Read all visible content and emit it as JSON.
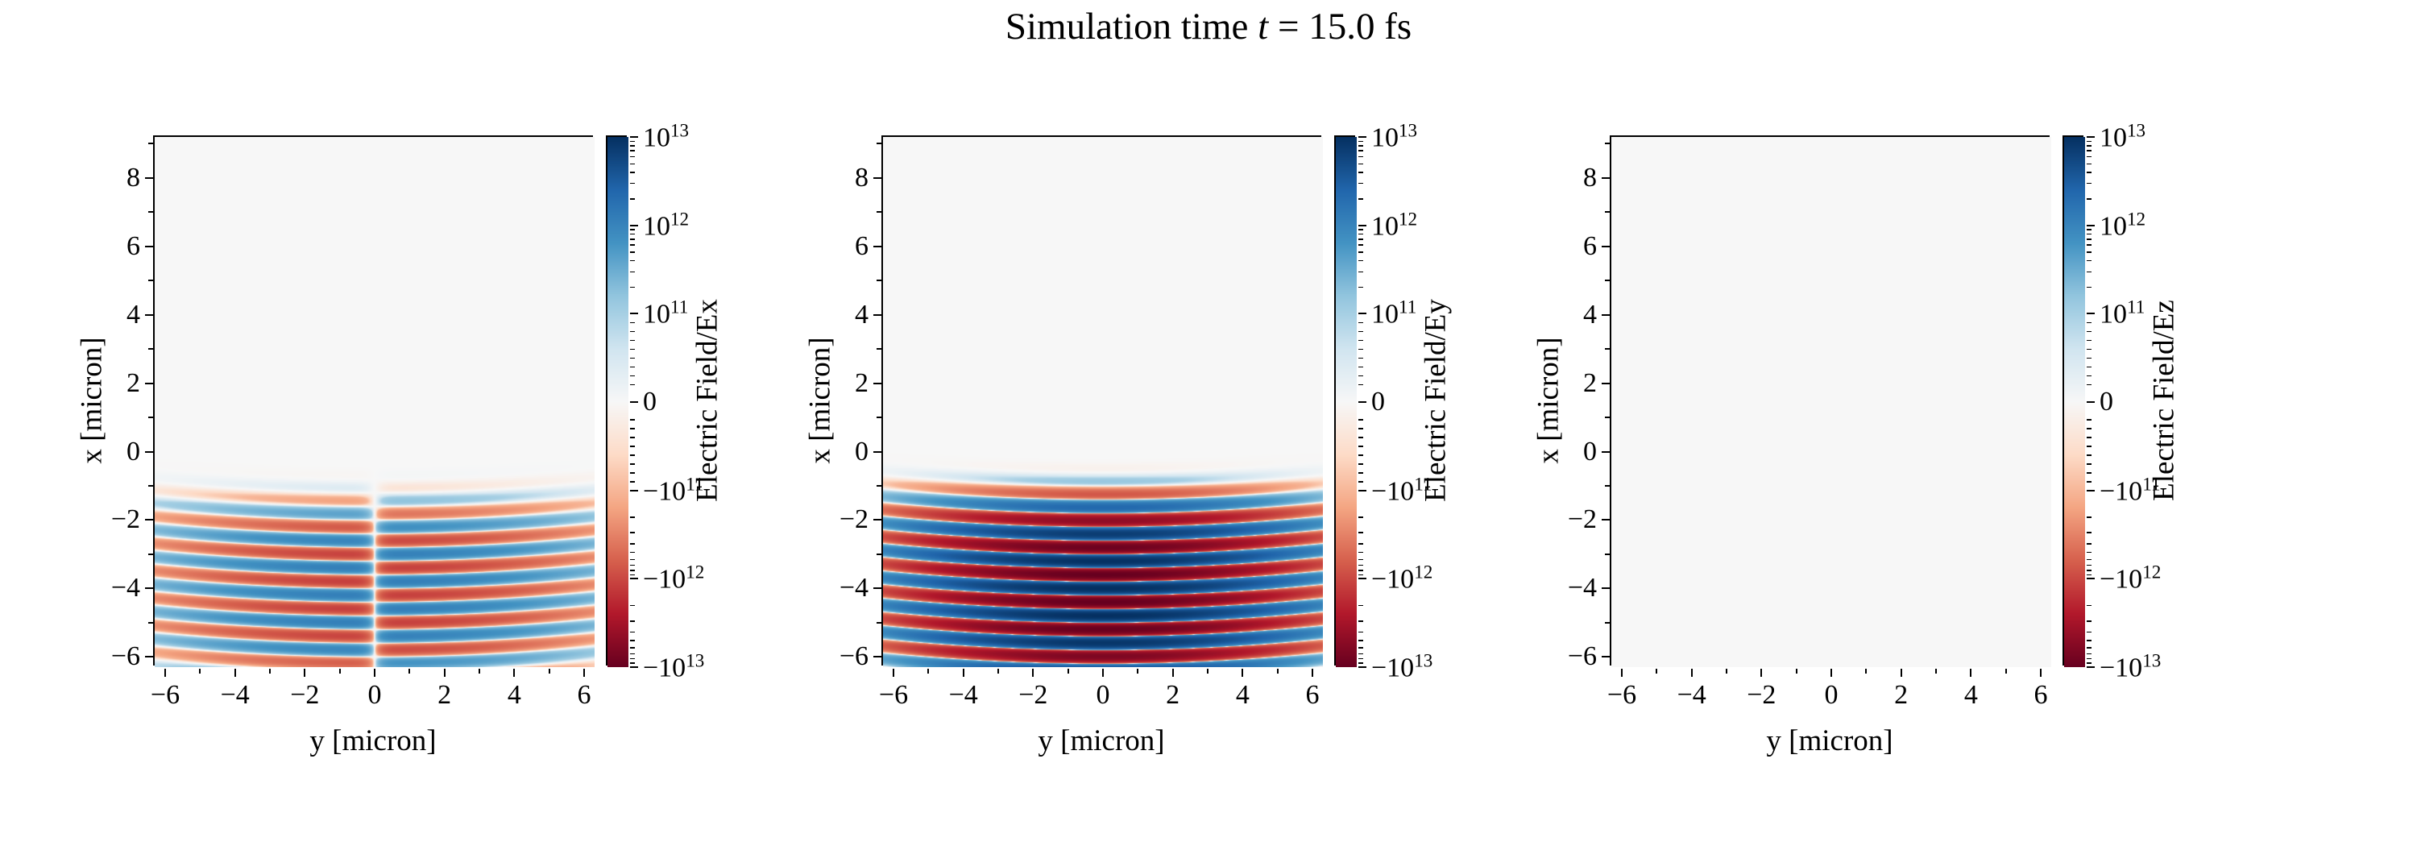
{
  "figure": {
    "title_prefix": "Simulation time ",
    "title_math_symbol": "t",
    "title_suffix": " = 15.0 fs",
    "background_color": "#ffffff"
  },
  "style": {
    "colormap": "RdBu",
    "colormap_stops": [
      "#67001f",
      "#b2182b",
      "#d6604d",
      "#f4a582",
      "#fddbc7",
      "#f7f7f7",
      "#d1e5f0",
      "#92c5de",
      "#4393c3",
      "#2166ac",
      "#053061"
    ],
    "spine_color": "#000000",
    "zero_field_color": "#f7f7f7"
  },
  "chart_data": [
    {
      "type": "heatmap",
      "component": "Ex",
      "xlabel": "y [micron]",
      "ylabel": "x [micron]",
      "xlim": [
        -6.3,
        6.3
      ],
      "ylim": [
        -6.3,
        9.2
      ],
      "x_ticks": [
        -6,
        -4,
        -2,
        0,
        2,
        4,
        6
      ],
      "y_ticks": [
        -6,
        -4,
        -2,
        0,
        2,
        4,
        6,
        8
      ],
      "colorbar_label": "Electric Field/Ex",
      "scale": "symlog",
      "linthresh": 100000000000.0,
      "decades_each_side": 2,
      "clim": [
        -10000000000000.0,
        10000000000000.0
      ],
      "colorbar_ticks": [
        {
          "label": "10^13",
          "value": 10000000000000.0
        },
        {
          "label": "10^12",
          "value": 1000000000000.0
        },
        {
          "label": "10^11",
          "value": 100000000000.0
        },
        {
          "label": "0",
          "value": 0
        },
        {
          "label": "-10^11",
          "value": -100000000000.0
        },
        {
          "label": "-10^12",
          "value": -1000000000000.0
        },
        {
          "label": "-10^13",
          "value": -10000000000000.0
        }
      ],
      "field_model": {
        "amplitude": 1200000000000.0,
        "wavelength_um": 0.8,
        "phase_cycles": 0,
        "pulse_center_x_um": -4.15,
        "pulse_halfwidth_um": 2.3,
        "envelope": "supergaussian4",
        "transverse_waist_um": 5.2,
        "transverse_parity": "odd",
        "wavefront_curvature": 0.008
      }
    },
    {
      "type": "heatmap",
      "component": "Ey",
      "xlabel": "y [micron]",
      "ylabel": "x [micron]",
      "xlim": [
        -6.3,
        6.3
      ],
      "ylim": [
        -6.3,
        9.2
      ],
      "x_ticks": [
        -6,
        -4,
        -2,
        0,
        2,
        4,
        6
      ],
      "y_ticks": [
        -6,
        -4,
        -2,
        0,
        2,
        4,
        6,
        8
      ],
      "colorbar_label": "Electric Field/Ey",
      "scale": "symlog",
      "linthresh": 100000000000.0,
      "decades_each_side": 2,
      "clim": [
        -10000000000000.0,
        10000000000000.0
      ],
      "colorbar_ticks": [
        {
          "label": "10^13",
          "value": 10000000000000.0
        },
        {
          "label": "10^12",
          "value": 1000000000000.0
        },
        {
          "label": "10^11",
          "value": 100000000000.0
        },
        {
          "label": "0",
          "value": 0
        },
        {
          "label": "-10^11",
          "value": -100000000000.0
        },
        {
          "label": "-10^12",
          "value": -1000000000000.0
        },
        {
          "label": "-10^13",
          "value": -10000000000000.0
        }
      ],
      "field_model": {
        "amplitude": 10000000000000.0,
        "wavelength_um": 0.8,
        "phase_cycles": 0.25,
        "pulse_center_x_um": -4.15,
        "pulse_halfwidth_um": 2.3,
        "envelope": "supergaussian4",
        "transverse_waist_um": 4.2,
        "transverse_parity": "even",
        "wavefront_curvature": 0.008
      }
    },
    {
      "type": "heatmap",
      "component": "Ez",
      "xlabel": "y [micron]",
      "ylabel": "x [micron]",
      "xlim": [
        -6.3,
        6.3
      ],
      "ylim": [
        -6.3,
        9.2
      ],
      "x_ticks": [
        -6,
        -4,
        -2,
        0,
        2,
        4,
        6
      ],
      "y_ticks": [
        -6,
        -4,
        -2,
        0,
        2,
        4,
        6,
        8
      ],
      "colorbar_label": "Electric Field/Ez",
      "scale": "symlog",
      "linthresh": 100000000000.0,
      "decades_each_side": 2,
      "clim": [
        -10000000000000.0,
        10000000000000.0
      ],
      "colorbar_ticks": [
        {
          "label": "10^13",
          "value": 10000000000000.0
        },
        {
          "label": "10^12",
          "value": 1000000000000.0
        },
        {
          "label": "10^11",
          "value": 100000000000.0
        },
        {
          "label": "0",
          "value": 0
        },
        {
          "label": "-10^11",
          "value": -100000000000.0
        },
        {
          "label": "-10^12",
          "value": -1000000000000.0
        },
        {
          "label": "-10^13",
          "value": -10000000000000.0
        }
      ],
      "field_model": {
        "amplitude": 0,
        "wavelength_um": 0.8,
        "phase_cycles": 0,
        "pulse_center_x_um": -4.15,
        "pulse_halfwidth_um": 2.3,
        "envelope": "supergaussian4",
        "transverse_waist_um": 4.2,
        "transverse_parity": "even",
        "wavefront_curvature": 0.008
      }
    }
  ]
}
